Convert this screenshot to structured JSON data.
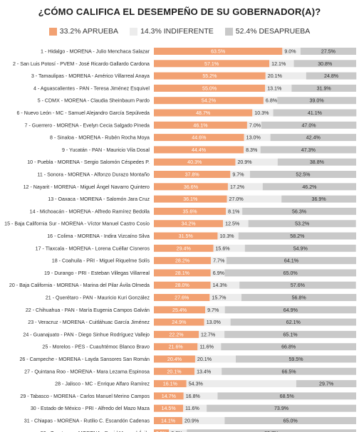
{
  "chart_data": {
    "type": "bar",
    "stacked": true,
    "orientation": "horizontal",
    "title": "¿CÓMO CALIFICA EL DESEMPEÑO DE SU GOBERNADOR(A)?",
    "legend": {
      "placement": "top"
    },
    "legend_labels": [
      "33.2% APRUEBA",
      "14.3% INDIFERENTE",
      "52.4% DESAPRUEBA"
    ],
    "colors": {
      "aprueba": "#f2a172",
      "indiferente": "#ececec",
      "desaprueba": "#c9c9c9"
    },
    "categories": [
      "1 - Hidalgo - MORENA - Julio Menchaca Salazar",
      "2 - San Luis Potosí - PVEM - José Ricardo Gallardo Cardona",
      "3 - Tamaulipas - MORENA - Américo Villarreal Anaya",
      "4 - Aguascalientes - PAN - Teresa Jiménez Esquivel",
      "5 - CDMX - MORENA - Claudia Sheinbaum Pardo",
      "6 - Nuevo León - MC - Samuel Alejandro García Sepúlveda",
      "7 - Guerrero - MORENA - Evelyn Cecia Salgado Pineda",
      "8 - Sinaloa - MORENA - Rubén Rocha Moya",
      "9 - Yucatán - PAN - Mauricio Vila Dosal",
      "10 - Puebla - MORENA - Sergio Salomón Céspedes P.",
      "11 - Sonora - MORENA - Alfonzo Durazo Montaño",
      "12 - Nayarit - MORENA - Miguel Ángel Navarro Quintero",
      "13 - Oaxaca - MORENA - Salomón Jara Cruz",
      "14 - Michoacán - MORENA - Alfredo Ramírez Bedolla",
      "15 - Baja California Sur - MORENA - Víctor Manuel Castro Cosío",
      "16 - Colima - MORENA - Indira Vizcaíno Silva",
      "17 - Tlaxcala - MORENA - Lorena Cuéllar Cisneros",
      "18 - Coahuila - PRI - Miguel Riquelme Solís",
      "19 - Durango - PRI - Esteban Villegas Villarreal",
      "20 - Baja California - MORENA - Marina del Pilar Ávila Olmeda",
      "21 - Querétaro - PAN - Mauricio Kuri González",
      "22 - Chihuahua - PAN - María Eugenia Campos Galván",
      "23 - Veracruz - MORENA - Cuitláhuac García Jiménez",
      "24 - Guanajuato - PAN - Diego Sinhue Rodríguez Vallejo",
      "25 - Morelos - PES - Cuauhtémoc Blanco Bravo",
      "26 - Campeche - MORENA - Layda Sansores San Román",
      "27 - Quintana Roo - MORENA - Mara Lezama Espinosa",
      "28 - Jalisco - MC - Enrique Alfaro Ramírez",
      "29 - Tabasco - MORENA - Carlos Manuel Merino Campos",
      "30 - Estado de México - PRI - Alfredo del Mazo Maza",
      "31 - Chiapas - MORENA - Rutilio C. Escandón Cadenas",
      "32 - Zacatecas - MORENA - David Monreal Ávila"
    ],
    "series": [
      {
        "name": "APRUEBA",
        "values": [
          63.5,
          57.1,
          55.2,
          55.0,
          54.2,
          48.7,
          46.1,
          44.6,
          44.4,
          40.3,
          37.8,
          36.6,
          36.1,
          35.6,
          34.2,
          31.5,
          29.4,
          28.2,
          28.1,
          28.0,
          27.6,
          25.4,
          24.9,
          22.2,
          21.6,
          20.4,
          20.1,
          16.1,
          14.7,
          14.5,
          14.1,
          7.5
        ]
      },
      {
        "name": "INDIFERENTE",
        "values": [
          9.0,
          12.1,
          20.1,
          13.1,
          6.8,
          10.3,
          7.0,
          13.0,
          8.3,
          20.9,
          9.7,
          17.2,
          27.0,
          8.1,
          12.5,
          10.3,
          15.6,
          7.7,
          6.9,
          14.3,
          15.7,
          9.7,
          13.0,
          12.7,
          11.6,
          20.1,
          13.4,
          54.3,
          16.8,
          11.6,
          20.9,
          8.8
        ]
      },
      {
        "name": "DESAPRUEBA",
        "values": [
          27.5,
          30.8,
          24.8,
          31.9,
          39.0,
          41.1,
          47.0,
          42.4,
          47.3,
          38.8,
          52.5,
          46.2,
          36.9,
          56.3,
          53.2,
          58.2,
          54.9,
          64.1,
          65.0,
          57.6,
          56.8,
          64.9,
          62.1,
          65.1,
          66.8,
          59.5,
          66.5,
          29.7,
          68.5,
          73.9,
          65.0,
          83.7
        ]
      }
    ],
    "value_labels": [
      [
        "63.5%",
        "9.0%",
        "27.5%"
      ],
      [
        "57.1%",
        "12.1%",
        "30.8%"
      ],
      [
        "55.2%",
        "20.1%",
        "24.8%"
      ],
      [
        "55.0%",
        "13.1%",
        "31.9%"
      ],
      [
        "54.2%",
        "6.8%",
        "39.0%"
      ],
      [
        "48.7%",
        "10.3%",
        "41.1%"
      ],
      [
        "46.1%",
        "7.0%",
        "47.0%"
      ],
      [
        "44.6%",
        "13.0%",
        "42.4%"
      ],
      [
        "44.4%",
        "8.3%",
        "47.3%"
      ],
      [
        "40.3%",
        "20.9%",
        "38.8%"
      ],
      [
        "37.8%",
        "9.7%",
        "52.5%"
      ],
      [
        "36.6%",
        "17.2%",
        "46.2%"
      ],
      [
        "36.1%",
        "27.0%",
        "36.9%"
      ],
      [
        "35.6%",
        "8.1%",
        "56.3%"
      ],
      [
        "34.2%",
        "12.5%",
        "53.2%"
      ],
      [
        "31.5%",
        "10.3%",
        "58.2%"
      ],
      [
        "29.4%",
        "15.6%",
        "54.9%"
      ],
      [
        "28.2%",
        "7.7%",
        "64.1%"
      ],
      [
        "28.1%",
        "6.9%",
        "65.0%"
      ],
      [
        "28.0%",
        "14.3%",
        "57.6%"
      ],
      [
        "27.6%",
        "15.7%",
        "56.8%"
      ],
      [
        "25.4%",
        "9.7%",
        "64.9%"
      ],
      [
        "24.9%",
        "13.0%",
        "62.1%"
      ],
      [
        "22.2%",
        "12.7%",
        "65.1%"
      ],
      [
        "21.6%",
        "11.6%",
        "66.8%"
      ],
      [
        "20.4%",
        "20.1%",
        "59.5%"
      ],
      [
        "20.1%",
        "13.4%",
        "66.5%"
      ],
      [
        "16.1%",
        "54.3%",
        "29.7%"
      ],
      [
        "14.7%",
        "16.8%",
        "68.5%"
      ],
      [
        "14.5%",
        "11.6%",
        "73.9%"
      ],
      [
        "14.1%",
        "20.9%",
        "65.0%"
      ],
      [
        "7.5%",
        "8.8%",
        "83.7%"
      ]
    ],
    "xlim": [
      0,
      100
    ]
  }
}
